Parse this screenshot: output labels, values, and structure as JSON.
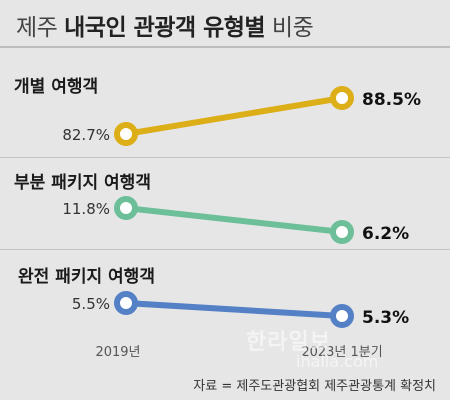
{
  "title": {
    "region": "제주",
    "main": "내국인 관광객 유형별",
    "suffix": "비중"
  },
  "chart_data": {
    "type": "line",
    "x": [
      "2019년",
      "2023년 1분기"
    ],
    "series": [
      {
        "name": "개별 여행객",
        "values": [
          82.7,
          88.5
        ],
        "labels": [
          "82.7%",
          "88.5%"
        ],
        "color": "#dcae17"
      },
      {
        "name": "부분 패키지 여행객",
        "values": [
          11.8,
          6.2
        ],
        "labels": [
          "11.8%",
          "6.2%"
        ],
        "color": "#6cbf98"
      },
      {
        "name": "완전 패키지 여행객",
        "values": [
          5.5,
          5.3
        ],
        "labels": [
          "5.5%",
          "5.3%"
        ],
        "color": "#5480c6"
      }
    ],
    "ylabel": "",
    "xlabel": ""
  },
  "footnote": "자료 = 제주도관광협회 제주관광통계 확정치",
  "watermark": {
    "name": "한라일보",
    "url": "ihalla.com"
  }
}
